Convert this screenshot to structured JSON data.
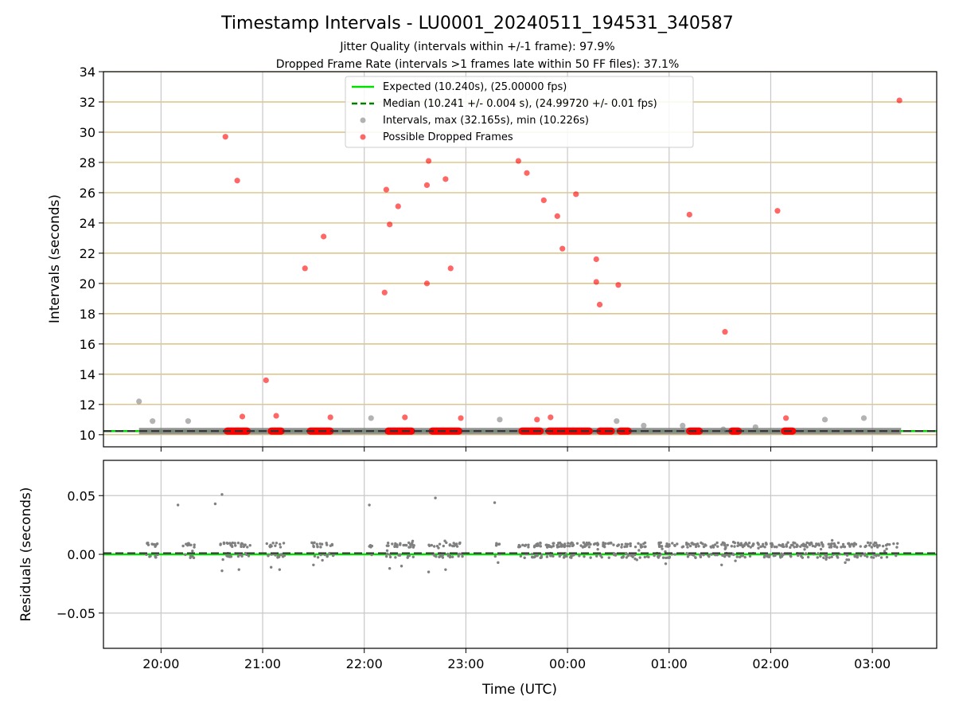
{
  "figure": {
    "title": "Timestamp Intervals - LU0001_20240511_194531_340587",
    "subtitle_1": "Jitter Quality (intervals within +/-1 frame): 97.9%",
    "subtitle_2": "Dropped Frame Rate (intervals >1 frames late within 50 FF files): 37.1%",
    "xlabel": "Time (UTC)"
  },
  "colors": {
    "expected": "#00dd00",
    "median": "#008000",
    "intervals": "#808080",
    "dropped": "#ff0000",
    "band_grid": "#d4b66a",
    "grid": "#c8c8c8"
  },
  "chart_data": [
    {
      "type": "scatter",
      "name": "intervals-panel",
      "ylabel": "Intervals (seconds)",
      "xlim": [
        "19:26",
        "03:38"
      ],
      "ylim": [
        9.2,
        34
      ],
      "y_ticks": [
        10,
        12,
        14,
        16,
        18,
        20,
        22,
        24,
        26,
        28,
        30,
        32,
        34
      ],
      "x_ticks": [
        "20:00",
        "21:00",
        "22:00",
        "23:00",
        "00:00",
        "01:00",
        "02:00",
        "03:00"
      ],
      "grid": "vertical gray + horizontal band lines every 2 s",
      "legend": {
        "placement": "upper-center",
        "entries": [
          "Expected (10.240s), (25.00000 fps)",
          "Median (10.241 +/- 0.004 s), (24.99720 +/- 0.01 fps)",
          "Intervals, max (32.165s), min (10.226s)",
          "Possible Dropped Frames"
        ]
      },
      "expected_line": 10.24,
      "median_line": 10.241,
      "series": [
        {
          "name": "Intervals, max (32.165s), min (10.226s)",
          "style": "gray-dots",
          "band": {
            "y": 10.24,
            "x_range": [
              "19:47",
              "03:17"
            ]
          },
          "points": [
            [
              "19:47",
              12.2
            ],
            [
              "19:55",
              10.9
            ],
            [
              "20:16",
              10.9
            ],
            [
              "22:04",
              11.1
            ],
            [
              "23:20",
              11.0
            ],
            [
              "00:29",
              10.9
            ],
            [
              "00:45",
              10.6
            ],
            [
              "01:08",
              10.6
            ],
            [
              "01:32",
              10.35
            ],
            [
              "01:51",
              10.5
            ],
            [
              "02:32",
              11.0
            ],
            [
              "02:55",
              11.1
            ]
          ]
        },
        {
          "name": "Possible Dropped Frames",
          "style": "red-dots",
          "base_ranges": [
            [
              "20:37",
              "20:53"
            ],
            [
              "21:03",
              "21:13"
            ],
            [
              "21:26",
              "21:42"
            ],
            [
              "22:12",
              "22:30"
            ],
            [
              "22:38",
              "22:58"
            ],
            [
              "23:31",
              "23:46"
            ],
            [
              "23:47",
              "00:15"
            ],
            [
              "00:17",
              "00:28"
            ],
            [
              "00:29",
              "00:38"
            ],
            [
              "01:10",
              "01:20"
            ],
            [
              "01:35",
              "01:43"
            ],
            [
              "02:06",
              "02:15"
            ]
          ],
          "points": [
            [
              "20:38",
              29.7
            ],
            [
              "20:45",
              26.8
            ],
            [
              "20:48",
              11.2
            ],
            [
              "21:02",
              13.6
            ],
            [
              "21:08",
              11.25
            ],
            [
              "21:25",
              21.0
            ],
            [
              "21:36",
              23.1
            ],
            [
              "21:40",
              11.15
            ],
            [
              "22:12",
              19.4
            ],
            [
              "22:13",
              26.2
            ],
            [
              "22:15",
              23.9
            ],
            [
              "22:20",
              25.1
            ],
            [
              "22:24",
              11.15
            ],
            [
              "22:37",
              20.0
            ],
            [
              "22:37",
              26.5
            ],
            [
              "22:38",
              28.1
            ],
            [
              "22:48",
              26.9
            ],
            [
              "22:51",
              21.0
            ],
            [
              "22:57",
              11.1
            ],
            [
              "23:31",
              28.1
            ],
            [
              "23:36",
              27.3
            ],
            [
              "23:42",
              11.0
            ],
            [
              "23:46",
              25.5
            ],
            [
              "23:50",
              11.15
            ],
            [
              "23:54",
              24.45
            ],
            [
              "23:57",
              22.3
            ],
            [
              "00:05",
              25.9
            ],
            [
              "00:17",
              21.6
            ],
            [
              "00:17",
              20.1
            ],
            [
              "00:19",
              18.6
            ],
            [
              "00:30",
              19.9
            ],
            [
              "01:12",
              24.55
            ],
            [
              "01:33",
              16.8
            ],
            [
              "02:04",
              24.8
            ],
            [
              "02:09",
              11.1
            ],
            [
              "03:16",
              32.1
            ]
          ]
        }
      ]
    },
    {
      "type": "scatter",
      "name": "residuals-panel",
      "ylabel": "Residuals (seconds)",
      "xlim": [
        "19:26",
        "03:38"
      ],
      "ylim": [
        -0.08,
        0.08
      ],
      "y_ticks": [
        0.05,
        0.0,
        -0.05
      ],
      "y_tick_labels": [
        "0.05",
        "0.00",
        "−0.05"
      ],
      "x_ticks": [
        "20:00",
        "21:00",
        "22:00",
        "23:00",
        "00:00",
        "01:00",
        "02:00",
        "03:00"
      ],
      "expected_line": 0.0,
      "median_line": 0.001,
      "outliers": [
        [
          "20:10",
          0.042
        ],
        [
          "20:32",
          0.043
        ],
        [
          "20:36",
          0.051
        ],
        [
          "22:03",
          0.042
        ],
        [
          "22:42",
          0.048
        ],
        [
          "23:17",
          0.044
        ],
        [
          "20:36",
          -0.014
        ],
        [
          "20:46",
          -0.013
        ],
        [
          "21:05",
          -0.011
        ],
        [
          "21:10",
          -0.013
        ],
        [
          "21:30",
          -0.009
        ],
        [
          "22:15",
          -0.012
        ],
        [
          "22:22",
          -0.01
        ],
        [
          "22:38",
          -0.015
        ],
        [
          "22:48",
          -0.013
        ],
        [
          "23:19",
          -0.007
        ],
        [
          "01:31",
          -0.009
        ],
        [
          "00:58",
          -0.008
        ],
        [
          "02:44",
          -0.007
        ]
      ]
    }
  ]
}
